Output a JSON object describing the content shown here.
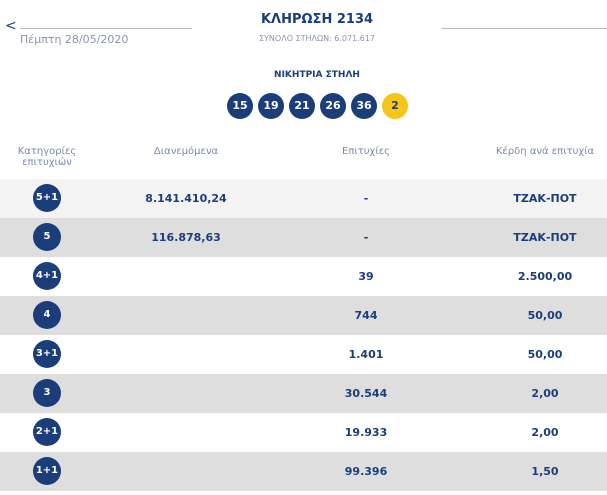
{
  "header": {
    "title": "ΚΛΗΡΩΣΗ 2134",
    "subtitle": "ΣΥΝΟΛΟ ΣΤΗΛΩΝ: 6.071.617",
    "date": "Πέμπτη 28/05/2020",
    "back": "<"
  },
  "winning": {
    "label": "ΝΙΚΗΤΡΙΑ ΣΤΗΛΗ",
    "numbers": [
      15,
      19,
      21,
      26,
      36
    ],
    "joker": 2
  },
  "table": {
    "columns": [
      "Κατηγορίες επιτυχιών",
      "Διανεμόμενα",
      "Επιτυχίες",
      "Κέρδη ανά επιτυχία"
    ],
    "rows": [
      [
        "5+1",
        "8.141.410,24",
        "-",
        "ΤΖΑΚ-ΠΟΤ"
      ],
      [
        "5",
        "116.878,63",
        "-",
        "ΤΖΑΚ-ΠΟΤ"
      ],
      [
        "4+1",
        "",
        "39",
        "2.500,00"
      ],
      [
        "4",
        "",
        "744",
        "50,00"
      ],
      [
        "3+1",
        "",
        "1.401",
        "50,00"
      ],
      [
        "3",
        "",
        "30.544",
        "2,00"
      ],
      [
        "2+1",
        "",
        "19.933",
        "2,00"
      ],
      [
        "1+1",
        "",
        "99.396",
        "1,50"
      ]
    ]
  }
}
